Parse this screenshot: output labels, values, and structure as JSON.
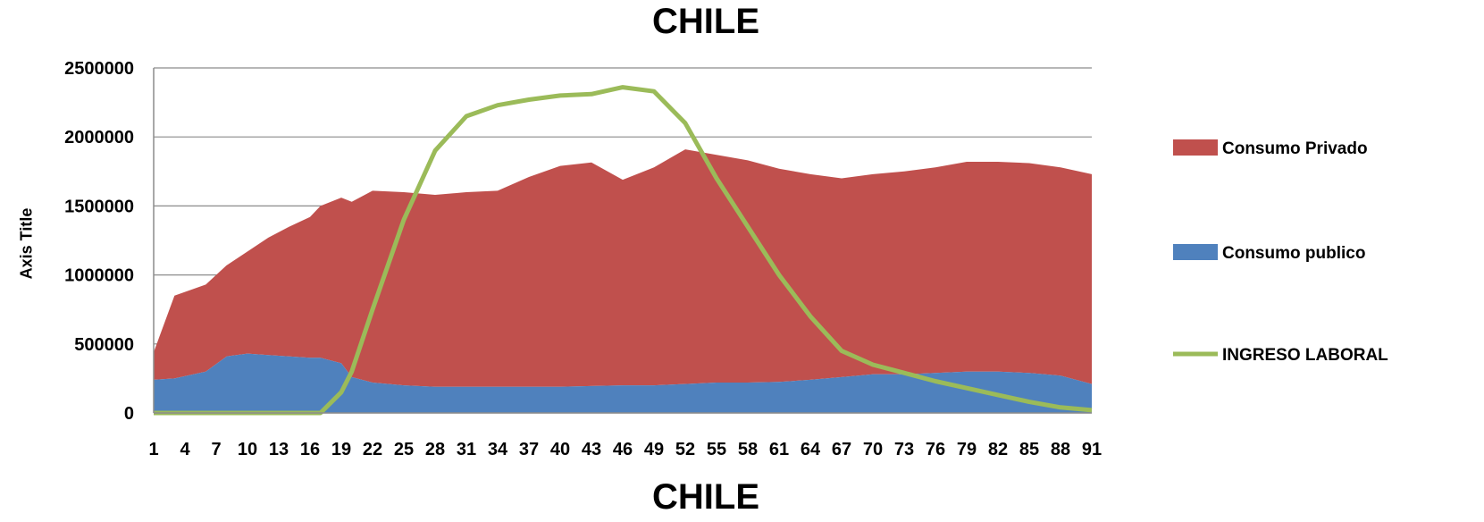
{
  "chart_data": {
    "type": "area",
    "title": "CHILE",
    "xlabel": "CHILE",
    "ylabel": "Axis Title",
    "ylim": [
      0,
      2500000
    ],
    "yticks": [
      "0",
      "500000",
      "1000000",
      "1500000",
      "2000000",
      "2500000"
    ],
    "xticks": [
      "1",
      "4",
      "7",
      "10",
      "13",
      "16",
      "19",
      "22",
      "25",
      "28",
      "31",
      "34",
      "37",
      "40",
      "43",
      "46",
      "49",
      "52",
      "55",
      "58",
      "61",
      "64",
      "67",
      "70",
      "73",
      "76",
      "79",
      "82",
      "85",
      "88",
      "91"
    ],
    "legend_position": "right",
    "x": [
      1,
      3,
      6,
      8,
      10,
      12,
      14,
      16,
      17,
      19,
      20,
      22,
      25,
      28,
      31,
      34,
      37,
      40,
      43,
      46,
      49,
      52,
      55,
      58,
      61,
      64,
      67,
      70,
      73,
      76,
      79,
      82,
      85,
      88,
      91
    ],
    "series": [
      {
        "name": "Consumo publico",
        "kind": "stacked-area",
        "color": "#4F81BD",
        "values": [
          240000,
          250000,
          300000,
          410000,
          430000,
          420000,
          410000,
          400000,
          400000,
          360000,
          260000,
          220000,
          200000,
          190000,
          190000,
          190000,
          190000,
          190000,
          195000,
          200000,
          200000,
          210000,
          220000,
          220000,
          225000,
          240000,
          260000,
          280000,
          280000,
          290000,
          300000,
          300000,
          290000,
          270000,
          210000
        ]
      },
      {
        "name": "Consumo Privado",
        "kind": "stacked-area",
        "color": "#C0504D",
        "values": [
          200000,
          600000,
          630000,
          660000,
          740000,
          850000,
          940000,
          1020000,
          1100000,
          1200000,
          1270000,
          1390000,
          1400000,
          1390000,
          1410000,
          1420000,
          1520000,
          1600000,
          1620000,
          1490000,
          1580000,
          1700000,
          1650000,
          1610000,
          1545000,
          1490000,
          1440000,
          1450000,
          1470000,
          1490000,
          1520000,
          1520000,
          1520000,
          1510000,
          1520000
        ]
      },
      {
        "name": "INGRESO LABORAL",
        "kind": "line",
        "color": "#9BBB59",
        "values": [
          0,
          0,
          0,
          0,
          0,
          0,
          0,
          0,
          0,
          150000,
          300000,
          750000,
          1400000,
          1900000,
          2150000,
          2230000,
          2270000,
          2300000,
          2310000,
          2360000,
          2330000,
          2100000,
          1700000,
          1350000,
          1000000,
          700000,
          450000,
          350000,
          290000,
          230000,
          180000,
          130000,
          80000,
          40000,
          20000
        ]
      }
    ]
  }
}
